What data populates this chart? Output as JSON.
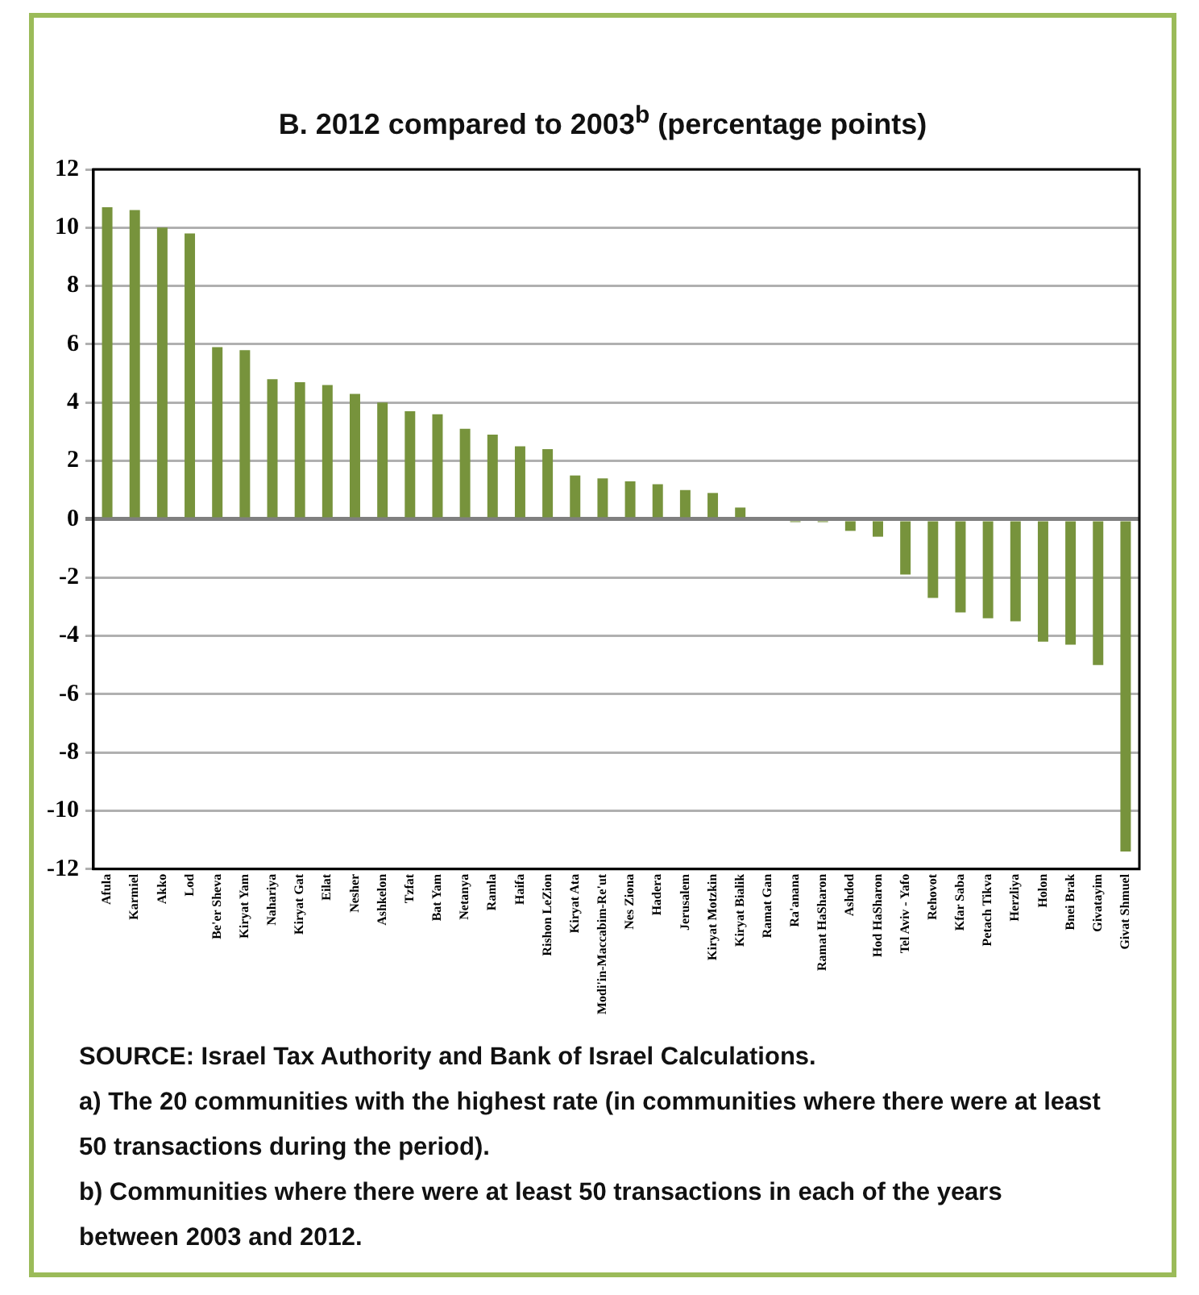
{
  "chart_data": {
    "type": "bar",
    "title": "B. 2012 compared to 2003$^{b}$ (percentage points)",
    "categories": [
      "Afula",
      "Karmiel",
      "Akko",
      "Lod",
      "Be'er Sheva",
      "Kiryat Yam",
      "Nahariya",
      "Kiryat Gat",
      "Eilat",
      "Nesher",
      "Ashkelon",
      "Tzfat",
      "Bat Yam",
      "Netanya",
      "Ramla",
      "Haifa",
      "Rishon LeZion",
      "Kiryat Ata",
      "Modi'in-Maccabim-Re'ut",
      "Nes Ziona",
      "Hadera",
      "Jerusalem",
      "Kiryat Motzkin",
      "Kiryat Bialik",
      "Ramat Gan",
      "Ra'anana",
      "Ramat HaSharon",
      "Ashdod",
      "Hod HaSharon",
      "Tel Aviv - Yafo",
      "Rehovot",
      "Kfar Saba",
      "Petach Tikva",
      "Herzliya",
      "Holon",
      "Bnei Brak",
      "Givatayim",
      "Givat Shmuel"
    ],
    "values": [
      10.7,
      10.6,
      10.0,
      9.8,
      5.9,
      5.8,
      4.8,
      4.7,
      4.6,
      4.3,
      4.0,
      3.7,
      3.6,
      3.1,
      2.9,
      2.5,
      2.4,
      1.5,
      1.4,
      1.3,
      1.2,
      1.0,
      0.9,
      0.4,
      0,
      -0.1,
      -0.1,
      -0.4,
      -0.6,
      -1.9,
      -2.7,
      -3.2,
      -3.4,
      -3.5,
      -4.2,
      -4.3,
      -5.0,
      -11.4
    ],
    "color": "#77933c",
    "ylim": [
      -12,
      12
    ],
    "yticks": [
      -12,
      -10,
      -8,
      -6,
      -4,
      -2,
      0,
      2,
      4,
      6,
      8,
      10,
      12
    ],
    "grid": "y",
    "legend": false,
    "annotations": [
      "SOURCE: Israel Tax Authority and Bank of Israel Calculations.",
      "a) The 20 communities with the highest rate (in communities where there were at least 50 transactions during the period).",
      "b) Communities where there were at least 50 transactions in each of the years between 2003 and 2012."
    ]
  }
}
